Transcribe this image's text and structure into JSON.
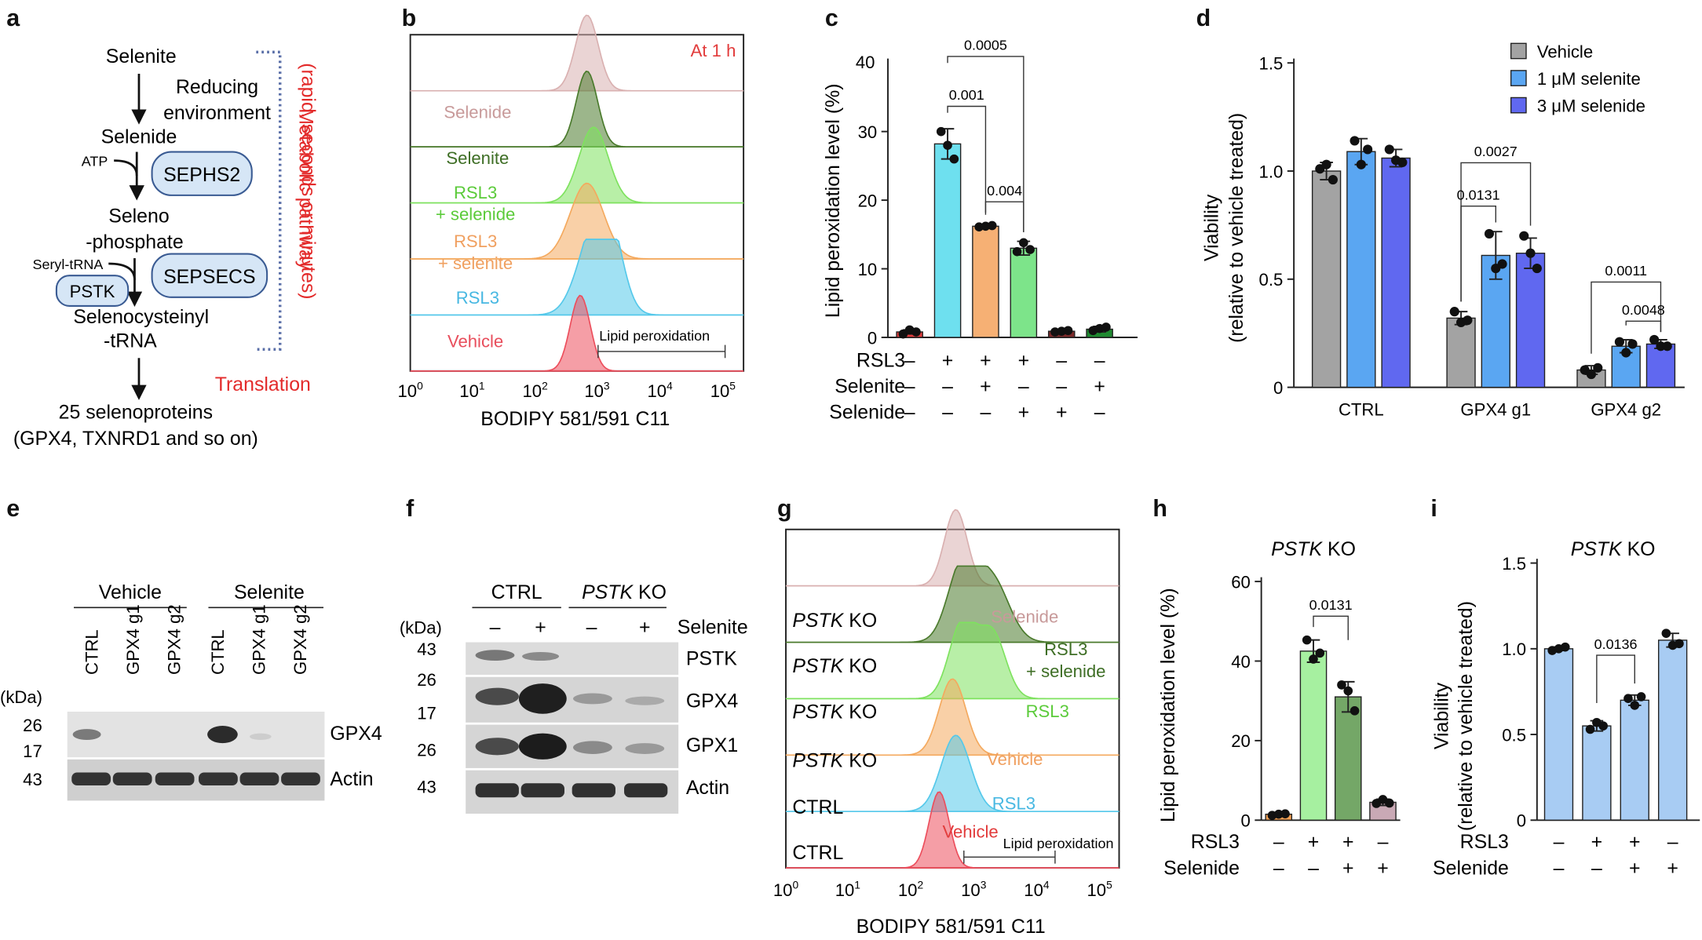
{
  "panels": {
    "a": {
      "letter": "a",
      "steps": [
        "Selenite",
        "Selenide",
        "Seleno",
        "-phosphate",
        "Selenocysteinyl",
        "-tRNA",
        "25 selenoproteins",
        "(GPX4, TXNRD1 and so on)"
      ],
      "reducing": [
        "Reducing",
        "environment"
      ],
      "atp": "ATP",
      "seryl": "Seryl-tRNA",
      "enzymes": [
        "SEPHS2",
        "SEPSECS",
        "PSTK"
      ],
      "pathway": [
        "Metabolic pathway",
        "(rapid, seconds or minutes)"
      ],
      "translation": "Translation",
      "colors": {
        "red": "#e32b2b",
        "box_fill": "#d6e6f6",
        "box_stroke": "#3a5b93"
      }
    },
    "b": {
      "letter": "b",
      "corner": "At 1 h",
      "labels": [
        "Selenide",
        "Selenite",
        "RSL3",
        "+ selenide",
        "RSL3",
        "+ selenite",
        "RSL3",
        "Vehicle"
      ],
      "colors": [
        "#d9b0b0",
        "#4a7a2c",
        "#7ee25e",
        "#f4a95e",
        "#54c8ea",
        "#ec4e5c"
      ],
      "gate": "Lipid peroxidation",
      "xlabel": "BODIPY 581/591 C11",
      "ticks": [
        "10",
        "10",
        "10",
        "10",
        "10",
        "10"
      ],
      "exps": [
        "0",
        "1",
        "2",
        "3",
        "4",
        "5"
      ]
    },
    "c": {
      "letter": "c",
      "ylabel": "Lipid peroxidation level (%)",
      "yticks": [
        "0",
        "10",
        "20",
        "30",
        "40"
      ],
      "pvals": [
        "0.0005",
        "0.001",
        "0.004"
      ],
      "rows": [
        {
          "name": "RSL3",
          "signs": [
            "–",
            "+",
            "+",
            "+",
            "–",
            "–"
          ]
        },
        {
          "name": "Selenite",
          "signs": [
            "–",
            "–",
            "+",
            "–",
            "–",
            "+"
          ]
        },
        {
          "name": "Selenide",
          "signs": [
            "–",
            "–",
            "–",
            "+",
            "+",
            "–"
          ]
        }
      ]
    },
    "d": {
      "letter": "d",
      "ylabel": [
        "Viability",
        "(relative to vehicle treated)"
      ],
      "yticks": [
        "0",
        "0.5",
        "1.0",
        "1.5"
      ],
      "legend": [
        "Vehicle",
        "1 μM selenite",
        "3 μM selenide"
      ],
      "groups": [
        "CTRL",
        "GPX4 g1",
        "GPX4 g2"
      ],
      "pvals": [
        "0.0027",
        "0.0131",
        "0.0011",
        "0.0048"
      ]
    },
    "e": {
      "letter": "e",
      "groups": [
        "Vehicle",
        "Selenite"
      ],
      "lanes": [
        "CTRL",
        "GPX4 g1",
        "GPX4 g2",
        "CTRL",
        "GPX4 g1",
        "GPX4 g2"
      ],
      "kda": "(kDa)",
      "markers": [
        "26",
        "17",
        "43"
      ],
      "bands": [
        "GPX4",
        "Actin"
      ]
    },
    "f": {
      "letter": "f",
      "groups": [
        "CTRL",
        "PSTK",
        " KO"
      ],
      "kda": "(kDa)",
      "treatment": "Selenite",
      "signs": [
        "–",
        "+",
        "–",
        "+"
      ],
      "markers": [
        "43",
        "26",
        "17",
        "26",
        "43"
      ],
      "bands": [
        "PSTK",
        "GPX4",
        "GPX1",
        "Actin"
      ]
    },
    "g": {
      "letter": "g",
      "left_labels": [
        "PSTK",
        " KO",
        "PSTK",
        " KO",
        "PSTK",
        " KO",
        "PSTK",
        " KO",
        "CTRL",
        "CTRL"
      ],
      "right_labels": [
        "Selenide",
        "RSL3",
        "+ selenide",
        "RSL3",
        "Vehicle",
        "RSL3",
        "Vehicle"
      ],
      "colors": [
        "#d9b0b0",
        "#4a7a2c",
        "#7ee25e",
        "#f4a95e",
        "#54c8ea",
        "#ec4e5c"
      ],
      "gate": "Lipid peroxidation",
      "xlabel": "BODIPY 581/591 C11",
      "ticks": [
        "10",
        "10",
        "10",
        "10",
        "10",
        "10"
      ],
      "exps": [
        "0",
        "1",
        "2",
        "3",
        "4",
        "5"
      ]
    },
    "h": {
      "letter": "h",
      "title": [
        "PSTK",
        " KO"
      ],
      "ylabel": "Lipid peroxidation level (%)",
      "yticks": [
        "0",
        "20",
        "40",
        "60"
      ],
      "pval": "0.0131",
      "rows": [
        {
          "name": "RSL3",
          "signs": [
            "–",
            "+",
            "+",
            "–"
          ]
        },
        {
          "name": "Selenide",
          "signs": [
            "–",
            "–",
            "+",
            "+"
          ]
        }
      ]
    },
    "i": {
      "letter": "i",
      "title": [
        "PSTK",
        " KO"
      ],
      "ylabel": [
        "Viability",
        "(relative to vehicle treated)"
      ],
      "yticks": [
        "0",
        "0.5",
        "1.0",
        "1.5"
      ],
      "pval": "0.0136",
      "rows": [
        {
          "name": "RSL3",
          "signs": [
            "–",
            "+",
            "+",
            "–"
          ]
        },
        {
          "name": "Selenide",
          "signs": [
            "–",
            "–",
            "+",
            "+"
          ]
        }
      ]
    }
  },
  "chart_data": [
    {
      "panel": "b",
      "type": "area",
      "series": [
        {
          "name": "Selenide",
          "peak_log10": 2.65
        },
        {
          "name": "Selenite",
          "peak_log10": 2.65
        },
        {
          "name": "RSL3 + selenide",
          "peak_log10": 2.75
        },
        {
          "name": "RSL3 + selenite",
          "peak_log10": 2.65
        },
        {
          "name": "RSL3",
          "peak_log10": 2.75
        },
        {
          "name": "Vehicle",
          "peak_log10": 2.55
        }
      ],
      "xlim": [
        0,
        5
      ],
      "log_x": true
    },
    {
      "panel": "c",
      "type": "bar",
      "categories": [
        "1",
        "2",
        "3",
        "4",
        "5",
        "6"
      ],
      "values": [
        0.8,
        28.2,
        16.2,
        13.0,
        0.9,
        1.2
      ],
      "errors": [
        0.3,
        2.2,
        0.2,
        1.0,
        0.2,
        0.4
      ],
      "points": [
        [
          0.5,
          1.1,
          0.8
        ],
        [
          30.0,
          28.0,
          26.0
        ],
        [
          16.1,
          16.2,
          16.3
        ],
        [
          12.5,
          13.8,
          12.8
        ],
        [
          0.8,
          0.9,
          1.0
        ],
        [
          1.0,
          1.3,
          1.5
        ]
      ],
      "colors": [
        "#e23c3c",
        "#6ee0ef",
        "#f6b074",
        "#7de48a",
        "#7d2a2a",
        "#1f8a30"
      ],
      "ylim": [
        0,
        40
      ]
    },
    {
      "panel": "d",
      "type": "bar",
      "categories": [
        "CTRL",
        "GPX4 g1",
        "GPX4 g2"
      ],
      "series": [
        {
          "name": "Vehicle",
          "color": "#a3a3a3",
          "values": [
            1.0,
            0.32,
            0.08
          ],
          "errors": [
            0.04,
            0.03,
            0.02
          ],
          "points": [
            [
              1.01,
              1.03,
              0.96
            ],
            [
              0.35,
              0.3,
              0.31
            ],
            [
              0.08,
              0.06,
              0.09
            ]
          ]
        },
        {
          "name": "1 μM selenite",
          "color": "#5aa6f2",
          "values": [
            1.09,
            0.61,
            0.19
          ],
          "errors": [
            0.06,
            0.11,
            0.03
          ],
          "points": [
            [
              1.14,
              1.03,
              1.1
            ],
            [
              0.71,
              0.55,
              0.57
            ],
            [
              0.21,
              0.16,
              0.2
            ]
          ]
        },
        {
          "name": "3 μM selenide",
          "color": "#6068f0",
          "values": [
            1.06,
            0.62,
            0.2
          ],
          "errors": [
            0.04,
            0.07,
            0.02
          ],
          "points": [
            [
              1.1,
              1.05,
              1.04
            ],
            [
              0.7,
              0.62,
              0.55
            ],
            [
              0.22,
              0.19,
              0.19
            ]
          ]
        }
      ],
      "ylim": [
        0,
        1.5
      ]
    },
    {
      "panel": "g",
      "type": "area",
      "series": [
        {
          "name": "PSTK KO Selenide",
          "peak_log10": 2.55
        },
        {
          "name": "PSTK KO RSL3 + selenide",
          "peak_log10": 2.65
        },
        {
          "name": "PSTK KO RSL3",
          "peak_log10": 2.65
        },
        {
          "name": "PSTK KO Vehicle",
          "peak_log10": 2.5
        },
        {
          "name": "CTRL RSL3",
          "peak_log10": 2.55
        },
        {
          "name": "CTRL Vehicle",
          "peak_log10": 2.3
        }
      ],
      "xlim": [
        0,
        5
      ],
      "log_x": true
    },
    {
      "panel": "h",
      "type": "bar",
      "categories": [
        "1",
        "2",
        "3",
        "4"
      ],
      "values": [
        1.5,
        42.5,
        31.0,
        4.5
      ],
      "errors": [
        0.3,
        2.8,
        3.8,
        0.8
      ],
      "points": [
        [
          1.2,
          1.5,
          1.6
        ],
        [
          45.3,
          40.5,
          42.0
        ],
        [
          34.0,
          32.5,
          27.5
        ],
        [
          4.2,
          5.2,
          4.3
        ]
      ],
      "colors": [
        "#f4a052",
        "#a6f0a0",
        "#74a767",
        "#c9a9b5"
      ],
      "ylim": [
        0,
        60
      ]
    },
    {
      "panel": "i",
      "type": "bar",
      "categories": [
        "1",
        "2",
        "3",
        "4"
      ],
      "values": [
        1.0,
        0.55,
        0.7,
        1.05
      ],
      "errors": [
        0.01,
        0.03,
        0.03,
        0.04
      ],
      "points": [
        [
          0.99,
          1.0,
          1.01
        ],
        [
          0.53,
          0.57,
          0.55
        ],
        [
          0.71,
          0.67,
          0.72
        ],
        [
          1.09,
          1.02,
          1.03
        ]
      ],
      "colors": [
        "#a8ccf3",
        "#a8ccf3",
        "#a8ccf3",
        "#a8ccf3"
      ],
      "ylim": [
        0,
        1.5
      ]
    }
  ]
}
